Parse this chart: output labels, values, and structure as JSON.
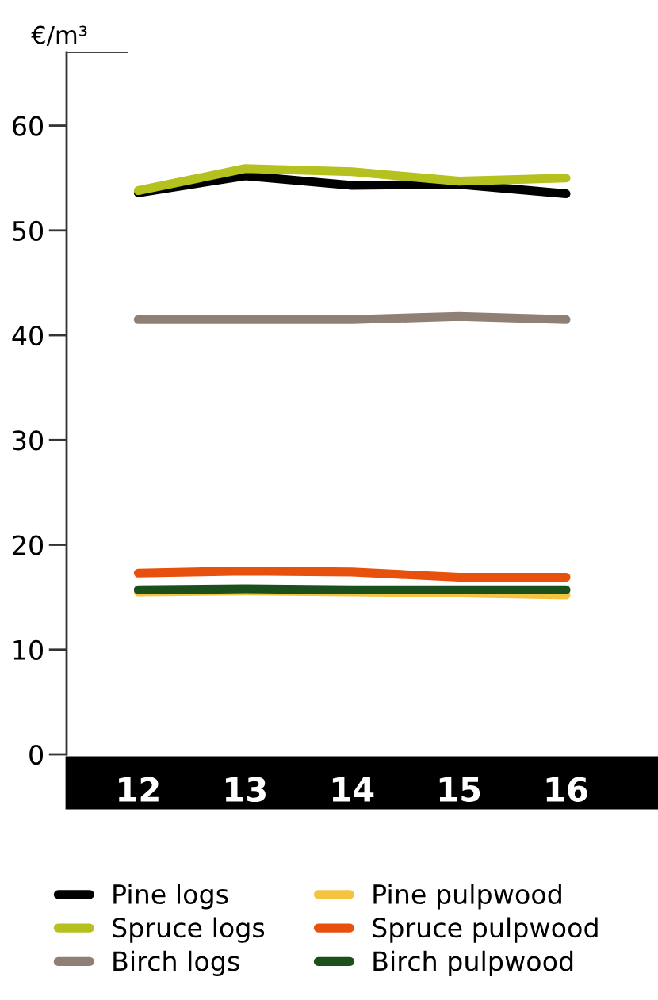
{
  "chart_data": {
    "type": "line",
    "ylabel": "€/m³",
    "categories": [
      "12",
      "13",
      "14",
      "15",
      "16"
    ],
    "series": [
      {
        "name": "Pine logs",
        "color": "#000000",
        "values": [
          53.6,
          55.2,
          54.3,
          54.4,
          53.5
        ]
      },
      {
        "name": "Spruce logs",
        "color": "#b5c11f",
        "values": [
          53.8,
          55.9,
          55.6,
          54.7,
          55.0
        ]
      },
      {
        "name": "Birch logs",
        "color": "#907f75",
        "values": [
          41.5,
          41.5,
          41.5,
          41.8,
          41.5
        ]
      },
      {
        "name": "Pine pulpwood",
        "color": "#f5c342",
        "values": [
          15.5,
          15.6,
          15.5,
          15.4,
          15.2
        ]
      },
      {
        "name": "Spruce pulpwood",
        "color": "#e8500e",
        "values": [
          17.3,
          17.5,
          17.4,
          16.9,
          16.9
        ]
      },
      {
        "name": "Birch pulpwood",
        "color": "#1b4f1c",
        "values": [
          15.7,
          15.8,
          15.7,
          15.7,
          15.7
        ]
      }
    ],
    "ylim": [
      0,
      67
    ],
    "yticks": [
      0,
      10,
      20,
      30,
      40,
      50,
      60
    ],
    "grid": false,
    "legend": "bottom",
    "marker": "none",
    "line_style": "solid"
  }
}
